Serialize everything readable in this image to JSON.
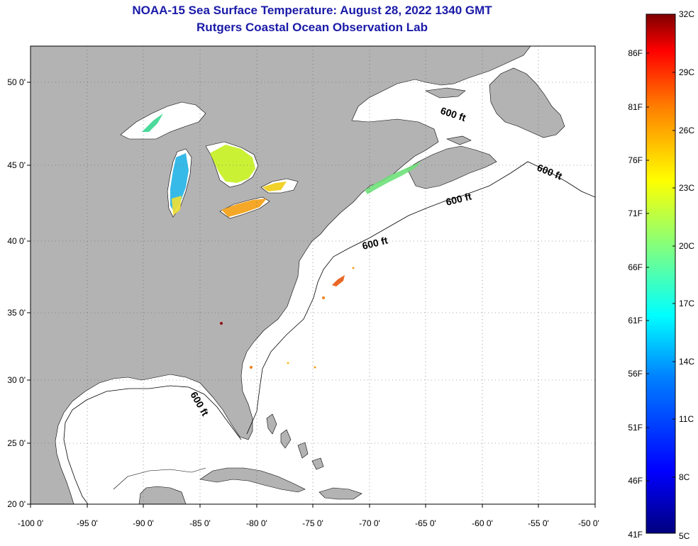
{
  "title": "NOAA-15 Sea Surface Temperature:  August 28, 2022 1340 GMT",
  "subtitle": "Rutgers Coastal Ocean Observation Lab",
  "map": {
    "lon_range": [
      -100,
      -50
    ],
    "lat_range": [
      20,
      52
    ],
    "lon_ticks": [
      "-100 0'",
      "-95 0'",
      "-90 0'",
      "-85 0'",
      "-80 0'",
      "-75 0'",
      "-70 0'",
      "-65 0'",
      "-60 0'",
      "-55 0'",
      "-50 0'"
    ],
    "lat_ticks": [
      "50 0'",
      "45 0'",
      "40 0'",
      "35 0'",
      "30 0'",
      "25 0'",
      "20 0'"
    ],
    "depth_label": "600 ft",
    "land_color": "#b3b3b3",
    "ocean_color": "#ffffff"
  },
  "colorbar": {
    "fahrenheit_labels": [
      "86F",
      "81F",
      "76F",
      "71F",
      "66F",
      "61F",
      "56F",
      "51F",
      "46F",
      "41F"
    ],
    "celsius_labels": [
      "32C",
      "29C",
      "26C",
      "23C",
      "20C",
      "17C",
      "14C",
      "11C",
      "8C",
      "5C"
    ],
    "gradient": [
      "#00007f",
      "#0000ff",
      "#007fff",
      "#00ffff",
      "#7fff7f",
      "#ffff00",
      "#ff7f00",
      "#ff0000",
      "#7f0000"
    ]
  }
}
